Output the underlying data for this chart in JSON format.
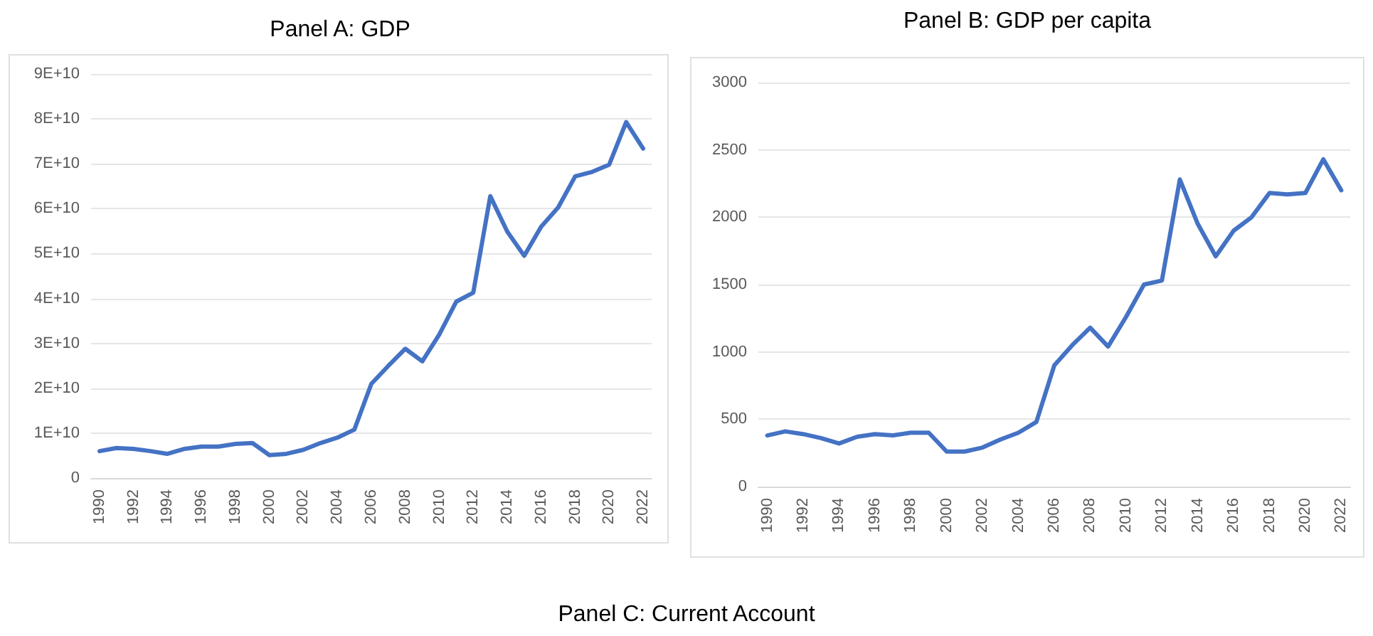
{
  "chart_data": [
    {
      "type": "line",
      "title": "Panel A: GDP",
      "categories": [
        "1990",
        null,
        "1992",
        null,
        "1994",
        null,
        "1996",
        null,
        "1998",
        null,
        "2000",
        null,
        "2002",
        null,
        "2004",
        null,
        "2006",
        null,
        "2008",
        null,
        "2010",
        null,
        "2012",
        null,
        "2014",
        null,
        "2016",
        null,
        "2018",
        null,
        "2020",
        null,
        "2022"
      ],
      "series": [
        {
          "color": "#4472c4",
          "values": [
            6000000000.0,
            6700000000.0,
            6500000000.0,
            6000000000.0,
            5400000000.0,
            6500000000.0,
            7000000000.0,
            7000000000.0,
            7600000000.0,
            7800000000.0,
            5100000000.0,
            5400000000.0,
            6300000000.0,
            7800000000.0,
            9000000000.0,
            10800000000.0,
            21000000000.0,
            25000000000.0,
            28800000000.0,
            26000000000.0,
            32000000000.0,
            39300000000.0,
            41300000000.0,
            62800000000.0,
            54900000000.0,
            49500000000.0,
            56000000000.0,
            60300000000.0,
            67200000000.0,
            68200000000.0,
            69800000000.0,
            79300000000.0,
            73400000000.0
          ]
        }
      ],
      "ylim": [
        0,
        90000000000.0
      ],
      "yticks": [
        0,
        {
          "value": 10000000000.0,
          "label": "1E+10"
        },
        {
          "value": 20000000000.0,
          "label": "2E+10"
        },
        {
          "value": 30000000000.0,
          "label": "3E+10"
        },
        {
          "value": 40000000000.0,
          "label": "4E+10"
        },
        {
          "value": 50000000000.0,
          "label": "5E+10"
        },
        {
          "value": 60000000000.0,
          "label": "6E+10"
        },
        {
          "value": 70000000000.0,
          "label": "7E+10"
        },
        {
          "value": 80000000000.0,
          "label": "8E+10"
        },
        {
          "value": 90000000000.0,
          "label": "9E+10"
        }
      ],
      "grid": "y",
      "marker": "none",
      "line_style": "solid"
    },
    {
      "type": "line",
      "title": "Panel B: GDP per capita",
      "categories": [
        "1990",
        null,
        "1992",
        null,
        "1994",
        null,
        "1996",
        null,
        "1998",
        null,
        "2000",
        null,
        "2002",
        null,
        "2004",
        null,
        "2006",
        null,
        "2008",
        null,
        "2010",
        null,
        "2012",
        null,
        "2014",
        null,
        "2016",
        null,
        "2018",
        null,
        "2020",
        null,
        "2022"
      ],
      "series": [
        {
          "color": "#4472c4",
          "values": [
            380,
            410,
            390,
            360,
            320,
            370,
            390,
            380,
            400,
            400,
            260,
            260,
            290,
            350,
            400,
            480,
            900,
            1050,
            1180,
            1040,
            1260,
            1500,
            1530,
            2280,
            1950,
            1710,
            1900,
            2000,
            2180,
            2170,
            2180,
            2430,
            2200
          ]
        }
      ],
      "ylim": [
        0,
        3000
      ],
      "yticks": [
        0,
        500,
        1000,
        1500,
        2000,
        2500,
        3000
      ],
      "grid": "y",
      "marker": "none",
      "line_style": "solid"
    },
    {
      "type": "other",
      "title": "Panel C: Current Account"
    }
  ]
}
